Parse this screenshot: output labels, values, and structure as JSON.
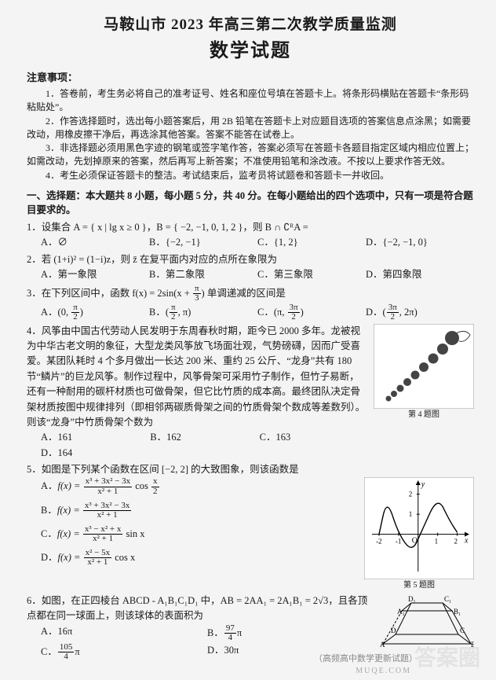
{
  "header": {
    "title_main": "马鞍山市 2023 年高三第二次教学质量监测",
    "title_sub": "数学试题"
  },
  "notice": {
    "head": "注意事项：",
    "items": [
      "1．答卷前，考生务必将自己的准考证号、姓名和座位号填在答题卡上。将条形码横贴在答题卡“条形码粘贴处”。",
      "2．作答选择题时，选出每小题答案后，用 2B 铅笔在答题卡上对应题目选项的答案信息点涂黑；如需要改动，用橡皮擦干净后，再选涂其他答案。答案不能答在试卷上。",
      "3．非选择题必须用黑色字迹的钢笔或签字笔作答，答案必须写在答题卡各题目指定区域内相应位置上；如需改动，先划掉原来的答案，然后再写上新答案；不准使用铅笔和涂改液。不按以上要求作答无效。",
      "4．考生必须保证答题卡的整洁。考试结束后，监考员将试题卷和答题卡一并收回。"
    ]
  },
  "section1_head": "一、选择题：本大题共 8 小题，每小题 5 分，共 40 分。在每小题给出的四个选项中，只有一项是符合题目要求的。",
  "q1": {
    "stem": "1．设集合 A = { x | lg x ≥ 0 }，B = { −2, −1, 0, 1, 2 }，则 B ∩ ∁ᴿA =",
    "A": "∅",
    "B": "{−2, −1}",
    "C": "{1, 2}",
    "D": "{−2, −1, 0}"
  },
  "q2": {
    "stem": "2．若 (1+i)² = (1−i)z，则 z̄ 在复平面内对应的点所在象限为",
    "A": "第一象限",
    "B": "第二象限",
    "C": "第三象限",
    "D": "第四象限"
  },
  "q3": {
    "stem_pre": "3．在下列区间中，函数 f(x) = 2sin(x + ",
    "stem_post": ") 单调递减的区间是",
    "frac1_n": "π",
    "frac1_d": "3",
    "A_pre": "(0, ",
    "A_n": "π",
    "A_d": "2",
    "A_post": ")",
    "B_pre": "(",
    "B_n": "π",
    "B_d": "2",
    "B_mid": ", π)",
    "C_pre": "(π, ",
    "C_n": "3π",
    "C_d": "2",
    "C_post": ")",
    "D_pre": "(",
    "D_n": "3π",
    "D_d": "2",
    "D_mid": ", 2π)"
  },
  "q4": {
    "stem": "4．风筝由中国古代劳动人民发明于东周春秋时期，距今已 2000 多年。龙被视为中华古老文明的象征，大型龙类风筝放飞场面壮观，气势磅礴，因而广受喜爱。某团队耗时 4 个多月做出一长达 200 米、重约 25 公斤、“龙身”共有 180 节“鳞片”的巨龙风筝。制作过程中，风筝骨架可采用竹子制作，但竹子易断，还有一种耐用的碳杆材质也可做骨架，但它比竹质的成本高。最终团队决定骨架材质按图中规律排列（即相邻两碳质骨架之间的竹质骨架个数成等差数列）。则该“龙身”中竹质骨架个数为",
    "A": "161",
    "B": "162",
    "C": "163",
    "D": "164",
    "fig_caption": "第 4 题图"
  },
  "q5": {
    "stem": "5．如图是下列某个函数在区间 [−2, 2] 的大致图象，则该函数是",
    "A_pre": "f(x) = ",
    "A_n": "x³ + 3x² − 3x",
    "A_d": "x² + 1",
    "A_post": " cos ",
    "A2_n": "x",
    "A2_d": "2",
    "B_pre": "f(x) = ",
    "B_n": "x³ + 3x² − 3x",
    "B_d": "x² + 1",
    "C_pre": "f(x) = ",
    "C_n": "x³ − x² + x",
    "C_d": "x² + 1",
    "C_post": " sin x",
    "D_pre": "f(x) = ",
    "D_n": "x² − 5x",
    "D_d": "x² + 1",
    "D_post": " cos x",
    "fig_caption": "第 5 题图",
    "chart": {
      "type": "line",
      "xlim": [
        -2.2,
        2.3
      ],
      "ylim": [
        -1.7,
        2.3
      ],
      "xticks": [
        -2,
        -1,
        1,
        2
      ],
      "yticks": [
        1,
        2
      ],
      "axis_color": "#000",
      "curve_color": "#000",
      "background": "#ffffff",
      "stroke_width": 1.4,
      "points": [
        [
          -2,
          0
        ],
        [
          -1.6,
          1.8
        ],
        [
          -1,
          0
        ],
        [
          -0.3,
          -0.9
        ],
        [
          0.2,
          0.2
        ],
        [
          1,
          1.9
        ],
        [
          1.6,
          0.7
        ],
        [
          2,
          0.1
        ]
      ]
    }
  },
  "q6": {
    "stem": "6．如图，在正四棱台 ABCD - A₁B₁C₁D₁ 中，AB = 2AA₁ = 2A₁B₁ = 2√3，且各顶点都在同一球面上，则该球体的表面积为",
    "A": "16π",
    "B_n": "97",
    "B_d": "4",
    "B_suf": "π",
    "C_n": "105",
    "C_d": "4",
    "C_suf": "π",
    "D": "30π",
    "fig_caption": "第 6 题图"
  },
  "watermark": "答案圈",
  "wm2": "（高频高中数学更新试题）",
  "wm3": "MUQE.COM"
}
